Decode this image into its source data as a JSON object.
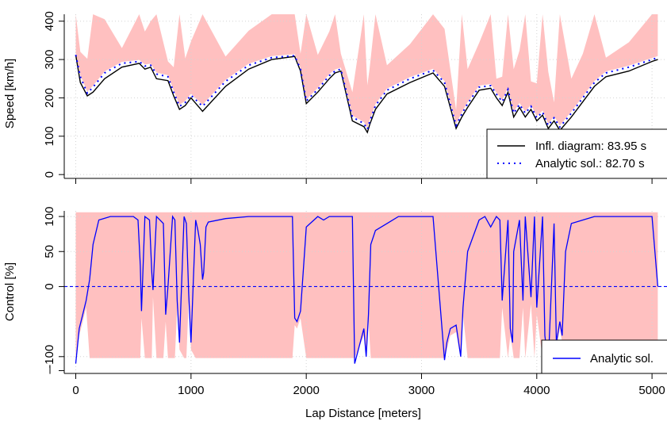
{
  "colors": {
    "envelope": "#ffc0c0",
    "infl": "#000000",
    "analytic": "#0000ff",
    "grid": "#d3d3d3",
    "axis": "#000000"
  },
  "chart_data": [
    {
      "type": "line",
      "panel": "top",
      "ylabel": "Speed [km/h]",
      "xlim": [
        -100,
        5130
      ],
      "ylim": [
        -10,
        418
      ],
      "yticks": [
        0,
        100,
        200,
        300,
        400
      ],
      "ytick_labels": [
        "0",
        "100",
        "200",
        "300",
        "400"
      ],
      "grid": true,
      "legend_position": "bottom-right",
      "legend": [
        "Infl. diagram: 83.95 s",
        "Analytic sol.: 82.70 s"
      ],
      "series": [
        {
          "name": "Infl. diagram: 83.95 s",
          "style": "solid",
          "x": [
            0,
            40,
            100,
            150,
            250,
            400,
            550,
            600,
            650,
            700,
            800,
            850,
            900,
            950,
            1000,
            1100,
            1300,
            1500,
            1700,
            1900,
            1950,
            2000,
            2100,
            2200,
            2250,
            2300,
            2400,
            2500,
            2530,
            2550,
            2600,
            2700,
            2900,
            3100,
            3200,
            3300,
            3350,
            3400,
            3500,
            3600,
            3650,
            3700,
            3750,
            3800,
            3850,
            3900,
            3950,
            4000,
            4050,
            4100,
            4150,
            4200,
            4300,
            4400,
            4500,
            4600,
            4800,
            5000,
            5050
          ],
          "y": [
            312,
            240,
            205,
            215,
            250,
            280,
            290,
            275,
            280,
            250,
            245,
            205,
            170,
            180,
            200,
            165,
            230,
            275,
            300,
            308,
            270,
            185,
            215,
            250,
            265,
            270,
            140,
            125,
            110,
            130,
            170,
            210,
            240,
            265,
            230,
            120,
            150,
            175,
            220,
            225,
            200,
            180,
            215,
            150,
            175,
            150,
            170,
            140,
            155,
            120,
            140,
            115,
            150,
            190,
            230,
            255,
            270,
            295,
            300
          ]
        },
        {
          "name": "Analytic sol.: 82.70 s",
          "style": "dotted",
          "x": [
            0,
            40,
            100,
            150,
            250,
            400,
            550,
            600,
            650,
            700,
            800,
            850,
            900,
            950,
            1000,
            1100,
            1300,
            1500,
            1700,
            1900,
            1950,
            2000,
            2100,
            2200,
            2250,
            2300,
            2400,
            2500,
            2530,
            2550,
            2600,
            2700,
            2900,
            3100,
            3200,
            3300,
            3350,
            3400,
            3500,
            3600,
            3650,
            3700,
            3750,
            3800,
            3850,
            3900,
            3950,
            4000,
            4050,
            4100,
            4150,
            4200,
            4300,
            4400,
            4500,
            4600,
            4800,
            5000,
            5050
          ],
          "y": [
            312,
            255,
            212,
            228,
            265,
            290,
            295,
            283,
            285,
            262,
            255,
            215,
            178,
            188,
            207,
            178,
            243,
            285,
            305,
            310,
            275,
            192,
            222,
            258,
            270,
            275,
            150,
            133,
            118,
            138,
            180,
            220,
            250,
            272,
            240,
            128,
            158,
            185,
            228,
            232,
            210,
            190,
            222,
            160,
            183,
            160,
            178,
            148,
            163,
            128,
            148,
            124,
            160,
            200,
            240,
            265,
            280,
            300,
            305
          ]
        }
      ]
    },
    {
      "type": "line",
      "panel": "bottom",
      "xlabel": "Lap Distance [meters]",
      "ylabel": "Control [%]",
      "xlim": [
        -100,
        5130
      ],
      "ylim": [
        -124,
        108
      ],
      "yticks": [
        -120,
        -100,
        0,
        50,
        100
      ],
      "ytick_labels": [
        "–",
        "-100",
        "0",
        "50",
        "100"
      ],
      "xticks": [
        0,
        1000,
        2000,
        3000,
        4000,
        5000
      ],
      "xtick_labels": [
        "0",
        "1000",
        "2000",
        "3000",
        "4000",
        "5000"
      ],
      "grid": true,
      "zero_line": true,
      "legend_position": "bottom-right",
      "legend": [
        "Analytic sol."
      ],
      "series": [
        {
          "name": "Analytic sol.",
          "style": "solid",
          "x": [
            0,
            30,
            60,
            90,
            120,
            150,
            200,
            300,
            400,
            500,
            540,
            560,
            570,
            600,
            640,
            660,
            670,
            700,
            760,
            780,
            800,
            840,
            860,
            880,
            900,
            940,
            960,
            980,
            1000,
            1040,
            1060,
            1080,
            1100,
            1110,
            1130,
            1150,
            1300,
            1500,
            1700,
            1880,
            1900,
            1920,
            1950,
            2000,
            2100,
            2150,
            2200,
            2300,
            2400,
            2420,
            2500,
            2520,
            2540,
            2560,
            2600,
            2700,
            2800,
            2900,
            3100,
            3200,
            3220,
            3250,
            3300,
            3340,
            3360,
            3400,
            3500,
            3550,
            3600,
            3650,
            3680,
            3700,
            3750,
            3770,
            3790,
            3800,
            3850,
            3880,
            3900,
            3950,
            3980,
            4000,
            4050,
            4070,
            4100,
            4150,
            4170,
            4200,
            4220,
            4250,
            4300,
            4400,
            4500,
            4600,
            4800,
            5000,
            5050
          ],
          "y": [
            -110,
            -60,
            -40,
            -20,
            10,
            60,
            95,
            100,
            100,
            100,
            95,
            30,
            -35,
            100,
            95,
            20,
            -5,
            100,
            90,
            -40,
            0,
            100,
            95,
            -20,
            -80,
            100,
            90,
            -10,
            -80,
            95,
            80,
            60,
            10,
            20,
            85,
            92,
            97,
            100,
            100,
            100,
            -45,
            -50,
            -35,
            85,
            100,
            95,
            100,
            100,
            100,
            -110,
            -60,
            -100,
            -40,
            60,
            80,
            90,
            100,
            100,
            100,
            -105,
            -80,
            -60,
            -55,
            -100,
            -30,
            50,
            95,
            100,
            85,
            100,
            95,
            -20,
            95,
            -60,
            -80,
            50,
            95,
            -20,
            100,
            -15,
            100,
            -30,
            100,
            -70,
            -110,
            90,
            -80,
            -50,
            -70,
            50,
            90,
            95,
            100,
            100,
            100,
            100,
            0
          ]
        }
      ]
    }
  ]
}
